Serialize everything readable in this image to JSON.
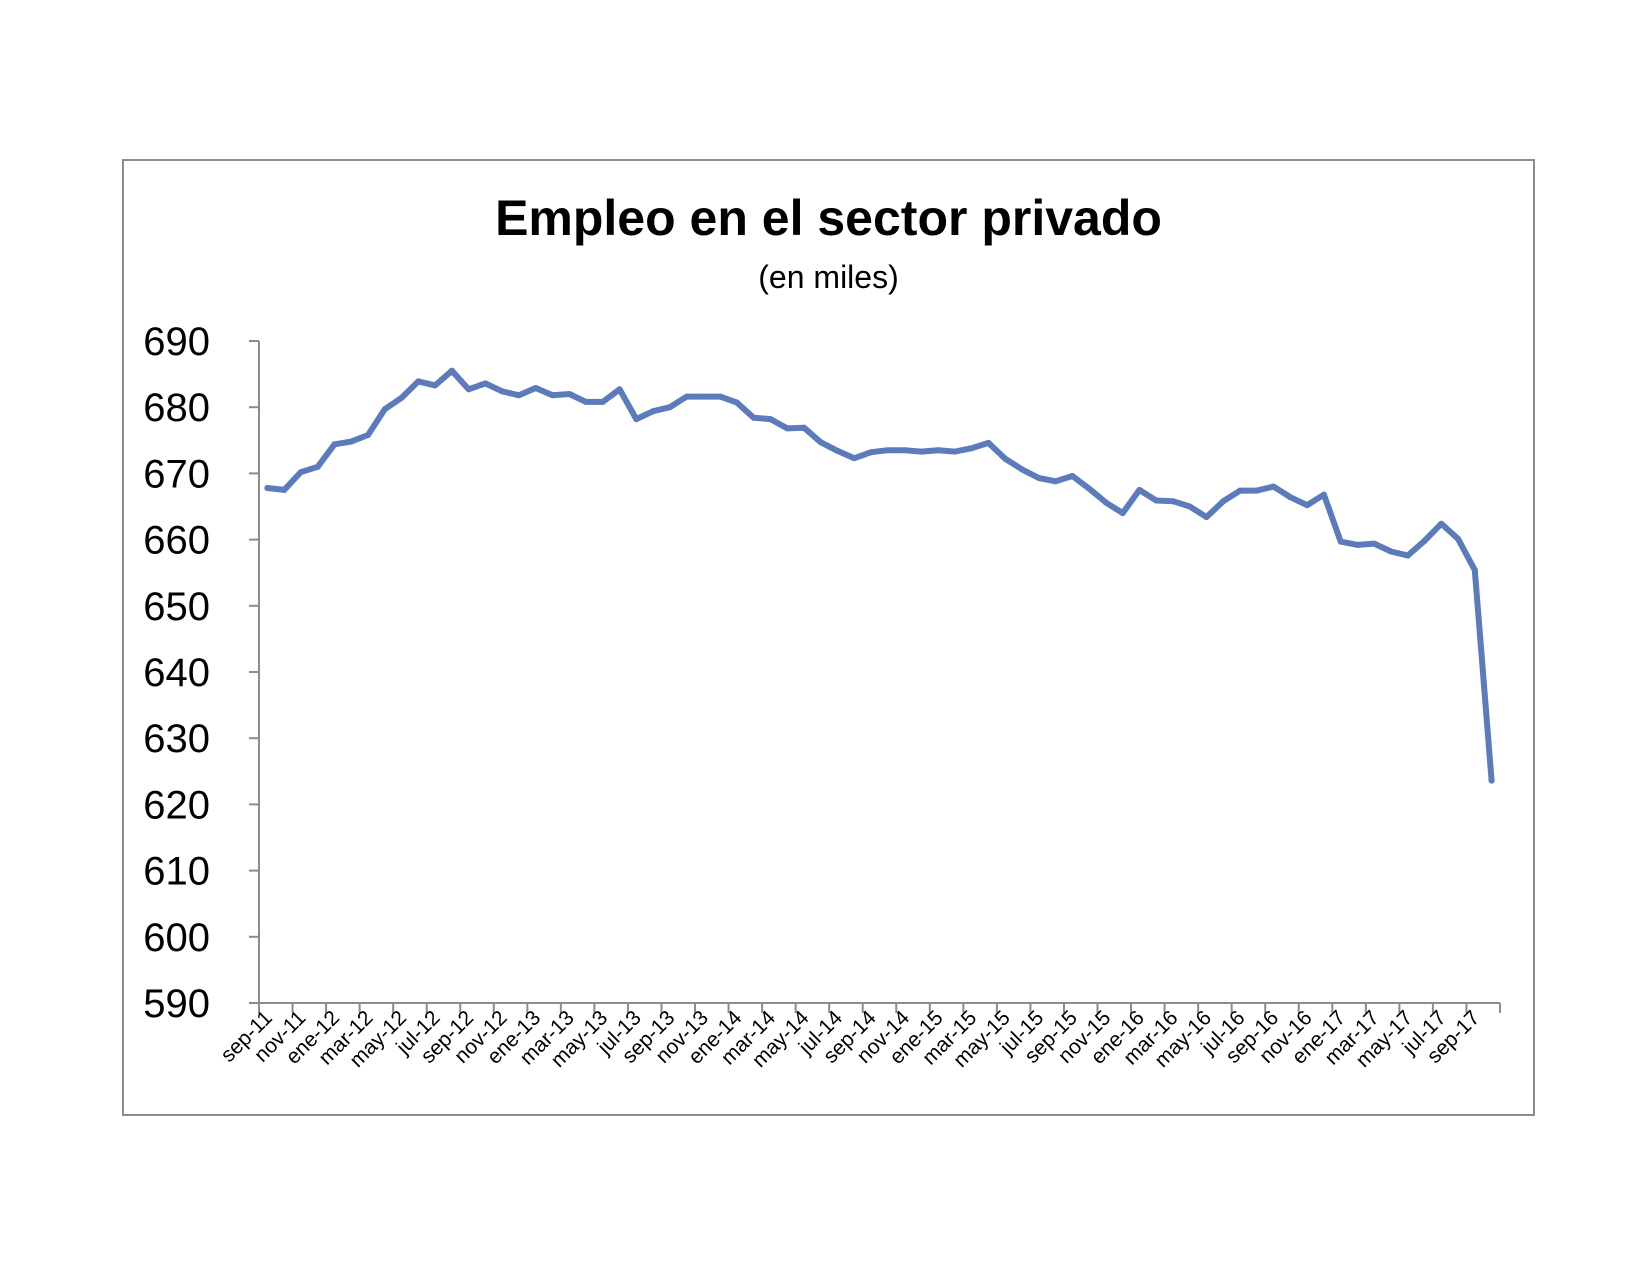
{
  "chart_data": {
    "type": "line",
    "title": "Empleo en el sector privado",
    "subtitle": "(en miles)",
    "xlabel": "",
    "ylabel": "",
    "ylim": [
      590,
      690
    ],
    "yticks": [
      690,
      680,
      670,
      660,
      650,
      640,
      630,
      620,
      610,
      600,
      590
    ],
    "grid": false,
    "legend": "none",
    "line_color": "#5b7bba",
    "x_tick_labels": [
      "sep-11",
      "nov-11",
      "ene-12",
      "mar-12",
      "may-12",
      "jul-12",
      "sep-12",
      "nov-12",
      "ene-13",
      "mar-13",
      "may-13",
      "jul-13",
      "sep-13",
      "nov-13",
      "ene-14",
      "mar-14",
      "may-14",
      "jul-14",
      "sep-14",
      "nov-14",
      "ene-15",
      "mar-15",
      "may-15",
      "jul-15",
      "sep-15",
      "nov-15",
      "ene-16",
      "mar-16",
      "may-16",
      "jul-16",
      "sep-16",
      "nov-16",
      "ene-17",
      "mar-17",
      "may-17",
      "jul-17",
      "sep-17"
    ],
    "series": [
      {
        "values": [
          667.8,
          667.5,
          670.2,
          671.0,
          674.4,
          674.8,
          675.8,
          679.7,
          681.4,
          683.9,
          683.3,
          685.5,
          682.7,
          683.6,
          682.4,
          681.8,
          682.9,
          681.8,
          682.0,
          680.8,
          680.8,
          682.7,
          678.2,
          679.4,
          680.0,
          681.6,
          681.6,
          681.6,
          680.7,
          678.4,
          678.2,
          676.8,
          676.9,
          674.7,
          673.4,
          672.3,
          673.2,
          673.5,
          673.5,
          673.3,
          673.5,
          673.3,
          673.8,
          674.6,
          672.2,
          670.6,
          669.3,
          668.8,
          669.6,
          667.7,
          665.6,
          664.0,
          667.5,
          665.9,
          665.8,
          665.0,
          663.4,
          665.8,
          667.4,
          667.4,
          668.0,
          666.4,
          665.2,
          666.8,
          659.7,
          659.2,
          659.4,
          658.2,
          657.6,
          659.8,
          662.4,
          660.1,
          655.4,
          623.6
        ]
      }
    ]
  }
}
